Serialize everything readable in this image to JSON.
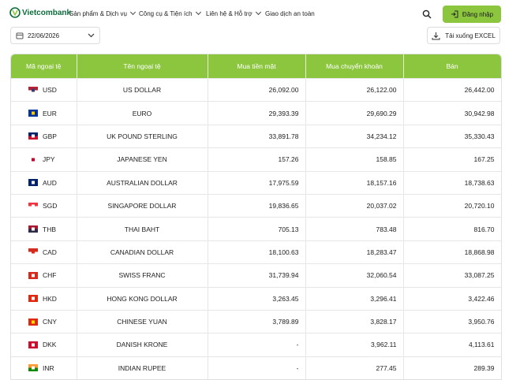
{
  "header": {
    "logo": "Vietcombank",
    "nav": [
      "Sản phẩm & Dịch vụ",
      "Công cụ & Tiện ích",
      "Liên hệ & Hỗ trợ",
      "Giao dịch an toàn"
    ],
    "login": "Đăng nhập"
  },
  "toolbar": {
    "date": "22/06/2026",
    "download": "Tải xuống EXCEL"
  },
  "table": {
    "columns": [
      "Mã ngoại tệ",
      "Tên ngoại tệ",
      "Mua tiền mặt",
      "Mua chuyển khoản",
      "Bán"
    ],
    "rows": [
      [
        "USD",
        "US DOLLAR",
        "26,092.00",
        "26,122.00",
        "26,442.00"
      ],
      [
        "EUR",
        "EURO",
        "29,393.39",
        "29,690.29",
        "30,942.98"
      ],
      [
        "GBP",
        "UK POUND STERLING",
        "33,891.78",
        "34,234.12",
        "35,330.43"
      ],
      [
        "JPY",
        "JAPANESE YEN",
        "157.26",
        "158.85",
        "167.25"
      ],
      [
        "AUD",
        "AUSTRALIAN DOLLAR",
        "17,975.59",
        "18,157.16",
        "18,738.63"
      ],
      [
        "SGD",
        "SINGAPORE DOLLAR",
        "19,836.65",
        "20,037.02",
        "20,720.10"
      ],
      [
        "THB",
        "THAI BAHT",
        "705.13",
        "783.48",
        "816.70"
      ],
      [
        "CAD",
        "CANADIAN DOLLAR",
        "18,100.63",
        "18,283.47",
        "18,868.98"
      ],
      [
        "CHF",
        "SWISS FRANC",
        "31,739.94",
        "32,060.54",
        "33,087.25"
      ],
      [
        "HKD",
        "HONG KONG DOLLAR",
        "3,263.45",
        "3,296.41",
        "3,422.46"
      ],
      [
        "CNY",
        "CHINESE YUAN",
        "3,789.89",
        "3,828.17",
        "3,950.76"
      ],
      [
        "DKK",
        "DANISH KRONE",
        "-",
        "3,962.11",
        "4,113.61"
      ],
      [
        "INR",
        "INDIAN RUPEE",
        "-",
        "277.45",
        "289.39"
      ]
    ]
  }
}
